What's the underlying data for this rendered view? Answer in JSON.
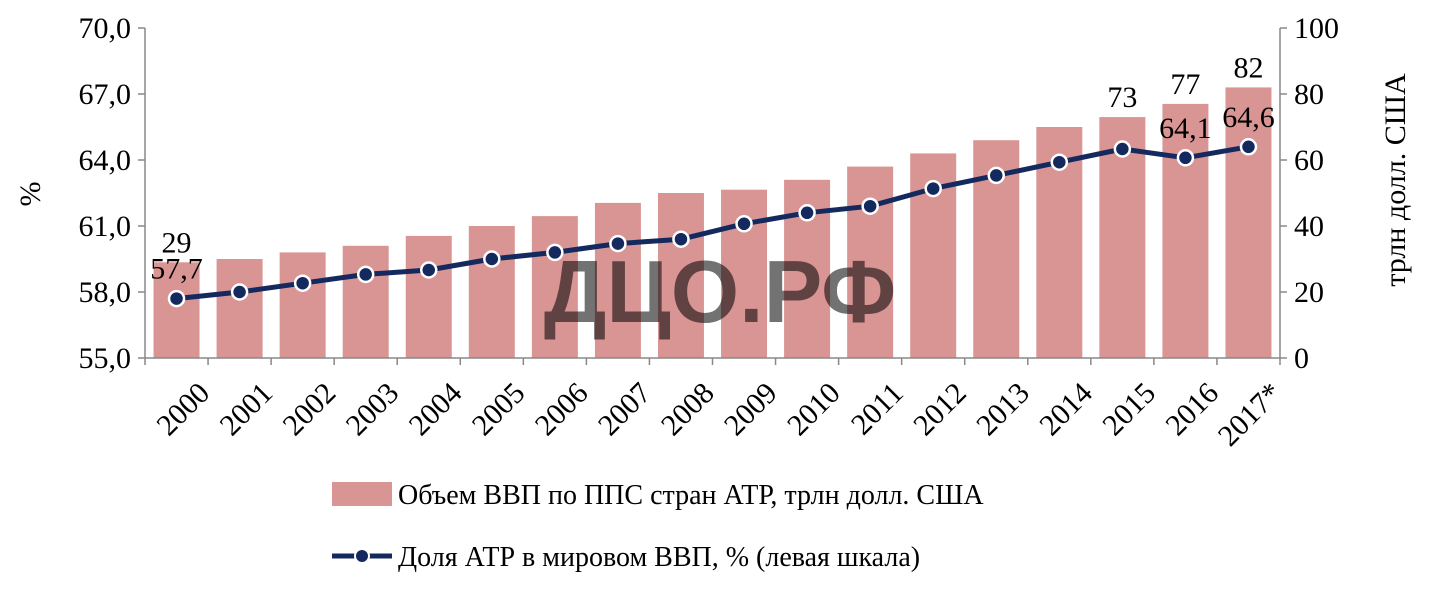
{
  "chart_data": {
    "type": "bar+line",
    "categories": [
      "2000",
      "2001",
      "2002",
      "2003",
      "2004",
      "2005",
      "2006",
      "2007",
      "2008",
      "2009",
      "2010",
      "2011",
      "2012",
      "2013",
      "2014",
      "2015",
      "2016",
      "2017*"
    ],
    "series": [
      {
        "name": "Объем ВВП по ППС стран АТР, трлн долл. США",
        "type": "bar",
        "axis": "right",
        "color": "#d99594",
        "values": [
          29,
          30,
          32,
          34,
          37,
          40,
          43,
          47,
          50,
          51,
          54,
          58,
          62,
          66,
          70,
          73,
          77,
          82
        ],
        "labels": {
          "0": "29",
          "15": "73",
          "16": "77",
          "17": "82"
        }
      },
      {
        "name": "Доля АТР в мировом ВВП, % (левая шкала)",
        "type": "line",
        "axis": "left",
        "color": "#14295e",
        "values": [
          57.7,
          58.0,
          58.4,
          58.8,
          59.0,
          59.5,
          59.8,
          60.2,
          60.4,
          61.1,
          61.6,
          61.9,
          62.7,
          63.3,
          63.9,
          64.5,
          64.1,
          64.6
        ],
        "labels": {
          "0": "57,7",
          "16": "64,1",
          "17": "64,6"
        }
      }
    ],
    "y_left": {
      "label": "%",
      "ylim": [
        55,
        70
      ],
      "ticks": [
        "55,0",
        "58,0",
        "61,0",
        "64,0",
        "67,0",
        "70,0"
      ]
    },
    "y_right": {
      "label": "трлн долл. США",
      "ylim": [
        0,
        100
      ],
      "ticks": [
        "0",
        "20",
        "40",
        "60",
        "80",
        "100"
      ]
    },
    "legend_position": "bottom",
    "grid": false,
    "watermark": "ДЦО.РФ"
  }
}
